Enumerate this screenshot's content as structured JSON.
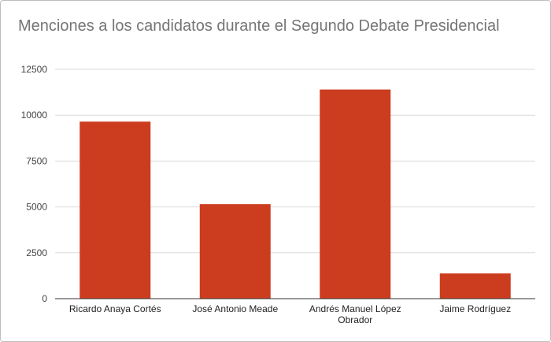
{
  "chart_data": {
    "type": "bar",
    "title": "Menciones a los candidatos durante el Segundo Debate Presidencial",
    "xlabel": "",
    "ylabel": "",
    "categories": [
      "Ricardo Anaya Cortés",
      "José Antonio Meade",
      "Andrés Manuel López Obrador",
      "Jaime Rodríguez"
    ],
    "category_lines": [
      [
        "Ricardo Anaya Cortés"
      ],
      [
        "José Antonio Meade"
      ],
      [
        "Andrés Manuel López",
        "Obrador"
      ],
      [
        "Jaime Rodríguez"
      ]
    ],
    "values": [
      9650,
      5150,
      11400,
      1380
    ],
    "ylim": [
      0,
      12500
    ],
    "yticks": [
      0,
      2500,
      5000,
      7500,
      10000,
      12500
    ],
    "grid": true,
    "legend": "none",
    "bar_color": "#cc3d20"
  }
}
